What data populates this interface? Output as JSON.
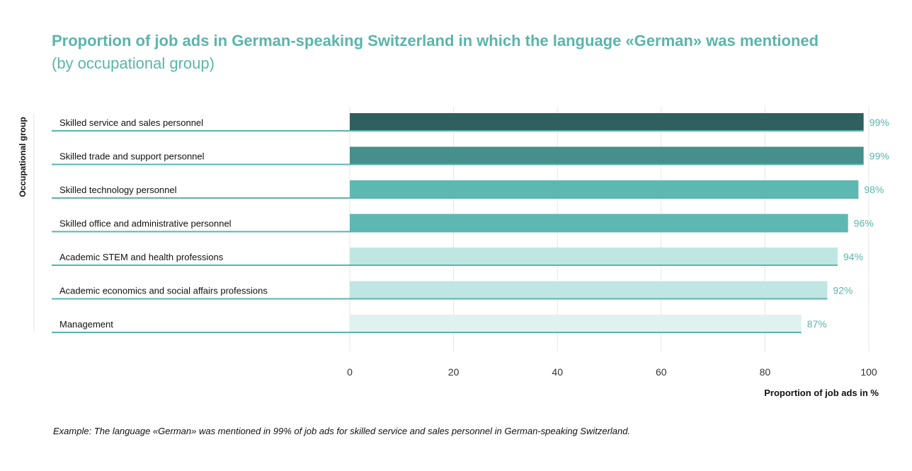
{
  "chart_data": {
    "type": "bar",
    "orientation": "horizontal",
    "title": "Proportion of job ads in German-speaking Switzerland in which the language «German» was mentioned",
    "subtitle": "(by occupational group)",
    "ylabel": "Occupational group",
    "xlabel": "Proportion of job ads in %",
    "xlim": [
      0,
      100
    ],
    "xticks": [
      0,
      20,
      40,
      60,
      80,
      100
    ],
    "grid": true,
    "categories": [
      "Skilled service and sales personnel",
      "Skilled trade and support personnel",
      "Skilled technology personnel",
      "Skilled office and administrative personnel",
      "Academic STEM and health professions",
      "Academic economics and social affairs professions",
      "Management"
    ],
    "values": [
      99,
      99,
      98,
      96,
      94,
      92,
      87
    ],
    "value_labels": [
      "99%",
      "99%",
      "98%",
      "96%",
      "94%",
      "92%",
      "87%"
    ],
    "colors": [
      "#2f5f5f",
      "#478f8c",
      "#5db8b2",
      "#5db8b2",
      "#c0e6e3",
      "#c0e6e3",
      "#dff2f0"
    ],
    "accent_color": "#5ab5ac",
    "note": "Example: The language «German» was mentioned in 99% of job ads for skilled service and sales personnel in German-speaking Switzerland."
  }
}
